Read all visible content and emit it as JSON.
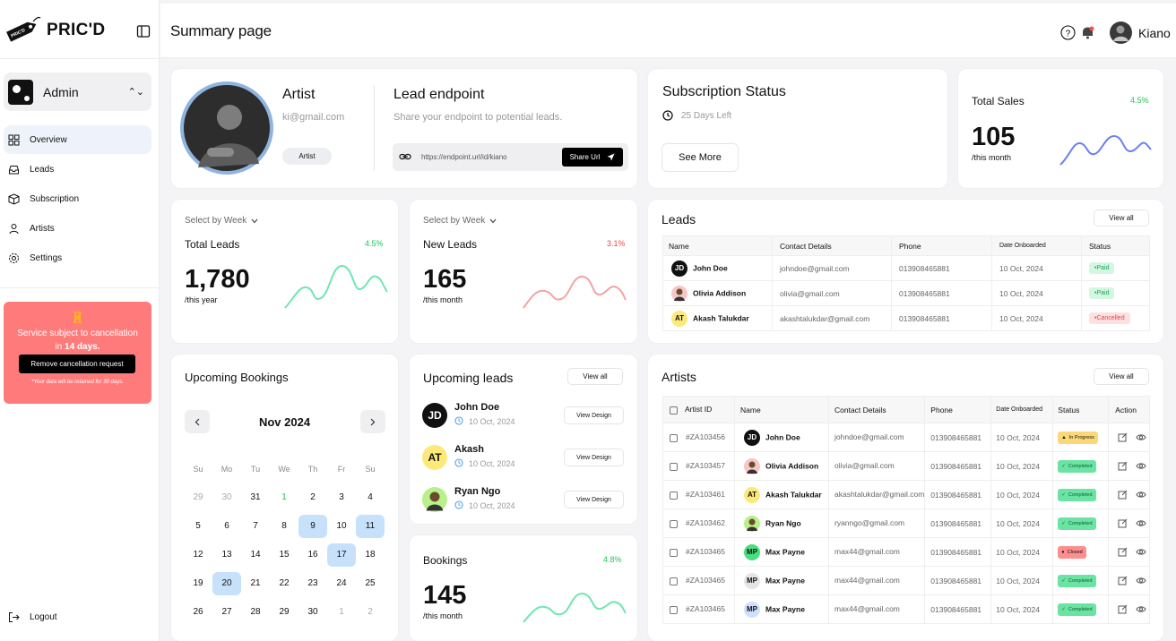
{
  "brand": {
    "name": "PRIC'D",
    "tag_text": "PRIC'D"
  },
  "admin": {
    "label": "Admin"
  },
  "nav": [
    {
      "label": "Overview"
    },
    {
      "label": "Leads"
    },
    {
      "label": "Subscription"
    },
    {
      "label": "Artists"
    },
    {
      "label": "Settings"
    }
  ],
  "alert": {
    "line1": "Service subject to cancellation",
    "line2_prefix": "in ",
    "line2_bold": "14 days.",
    "button": "Remove cancellation request",
    "note": "*Your data will be retained for 30 days."
  },
  "logout": "Logout",
  "header": {
    "title": "Summary page",
    "user": "Kiano"
  },
  "profile": {
    "name": "Artist",
    "email": "ki@gmail.com",
    "role": "Artist"
  },
  "lead_endpoint": {
    "title": "Lead endpoint",
    "subtitle": "Share your endpoint to potential leads.",
    "url": "https://endpoint.url/id/kiano",
    "button": "Share Url"
  },
  "subscription": {
    "title": "Subscription Status",
    "days": "25 Days Left",
    "button": "See More"
  },
  "total_sales": {
    "title": "Total Sales",
    "pct": "4.5%",
    "value": "105",
    "period": "/this month"
  },
  "total_leads": {
    "selector": "Select by Week",
    "title": "Total Leads",
    "pct": "4.5%",
    "value": "1,780",
    "period": "/this year"
  },
  "new_leads": {
    "selector": "Select by Week",
    "title": "New Leads",
    "pct": "3.1%",
    "value": "165",
    "period": "/this month"
  },
  "leads": {
    "title": "Leads",
    "view_all": "View all",
    "headers": [
      "Name",
      "Contact Details",
      "Phone",
      "Date Onboarded",
      "Status"
    ],
    "rows": [
      {
        "initials": "JD",
        "name": "John Doe",
        "email": "johndoe@gmail.com",
        "phone": "013908465881",
        "date": "10 Oct, 2024",
        "status": "Paid"
      },
      {
        "initials": "",
        "name": "Olivia Addison",
        "email": "olivia@gmail.com",
        "phone": "013908465881",
        "date": "10 Oct, 2024",
        "status": "Paid"
      },
      {
        "initials": "AT",
        "name": "Akash Talukdar",
        "email": "akashtalukdar@gmail.com",
        "phone": "013908465881",
        "date": "10 Oct, 2024",
        "status": "Cancelled"
      }
    ]
  },
  "bookings_cal": {
    "title": "Upcoming Bookings",
    "month": "Nov 2024",
    "weekdays": [
      "Su",
      "Mo",
      "Tu",
      "We",
      "Th",
      "Fr",
      "Su"
    ],
    "weeks": [
      [
        "29",
        "30",
        "31",
        "1",
        "2",
        "3",
        "4"
      ],
      [
        "5",
        "6",
        "7",
        "8",
        "9",
        "10",
        "11"
      ],
      [
        "12",
        "13",
        "14",
        "15",
        "16",
        "17",
        "18"
      ],
      [
        "19",
        "20",
        "21",
        "22",
        "23",
        "24",
        "25"
      ],
      [
        "26",
        "27",
        "28",
        "29",
        "30",
        "1",
        "2"
      ]
    ]
  },
  "upcoming_leads": {
    "title": "Upcoming leads",
    "view_all": "View all",
    "button": "View Design",
    "items": [
      {
        "initials": "JD",
        "name": "John Doe",
        "date": "10 Oct, 2024"
      },
      {
        "initials": "AT",
        "name": "Akash",
        "date": "10 Oct, 2024"
      },
      {
        "initials": "",
        "name": "Ryan Ngo",
        "date": "10 Oct, 2024"
      }
    ]
  },
  "bookings": {
    "title": "Bookings",
    "pct": "4.8%",
    "value": "145",
    "period": "/this month"
  },
  "artists": {
    "title": "Artists",
    "view_all": "View all",
    "headers": [
      "Artist ID",
      "Name",
      "Contact Details",
      "Phone",
      "Date Onboarded",
      "Status",
      "Action"
    ],
    "rows": [
      {
        "id": "#ZA103456",
        "initials": "JD",
        "name": "John Doe",
        "email": "johndoe@gmail.com",
        "phone": "013908465881",
        "date": "10 Oct, 2024",
        "status": "In Progress"
      },
      {
        "id": "#ZA103457",
        "initials": "",
        "name": "Olivia Addison",
        "email": "olivia@gmail.com",
        "phone": "013908465881",
        "date": "10 Oct, 2024",
        "status": "Completed"
      },
      {
        "id": "#ZA103461",
        "initials": "AT",
        "name": "Akash Talukdar",
        "email": "akashtalukdar@gmail.com",
        "phone": "013908465881",
        "date": "10 Oct, 2024",
        "status": "Completed"
      },
      {
        "id": "#ZA103462",
        "initials": "",
        "name": "Ryan Ngo",
        "email": "ryanngo@gmail.com",
        "phone": "013908465881",
        "date": "10 Oct, 2024",
        "status": "Completed"
      },
      {
        "id": "#ZA103465",
        "initials": "MP",
        "name": "Max Payne",
        "email": "max44@gmail.com",
        "phone": "013908465881",
        "date": "10 Oct, 2024",
        "status": "Closed"
      },
      {
        "id": "#ZA103465",
        "initials": "MP",
        "name": "Max Payne",
        "email": "max44@gmail.com",
        "phone": "013908465881",
        "date": "10 Oct, 2024",
        "status": "Completed"
      },
      {
        "id": "#ZA103465",
        "initials": "MP",
        "name": "Max Payne",
        "email": "max44@gmail.com",
        "phone": "013908465881",
        "date": "10 Oct, 2024",
        "status": "Completed"
      }
    ]
  },
  "colors": {
    "green": "#22c55e",
    "red": "#ef4444",
    "spark_blue": "#6b7ff0",
    "spark_green": "#6ee7b0",
    "spark_red": "#f4a3a3",
    "alert": "#ff7b7b",
    "selected_day": "#c7e1fb"
  }
}
